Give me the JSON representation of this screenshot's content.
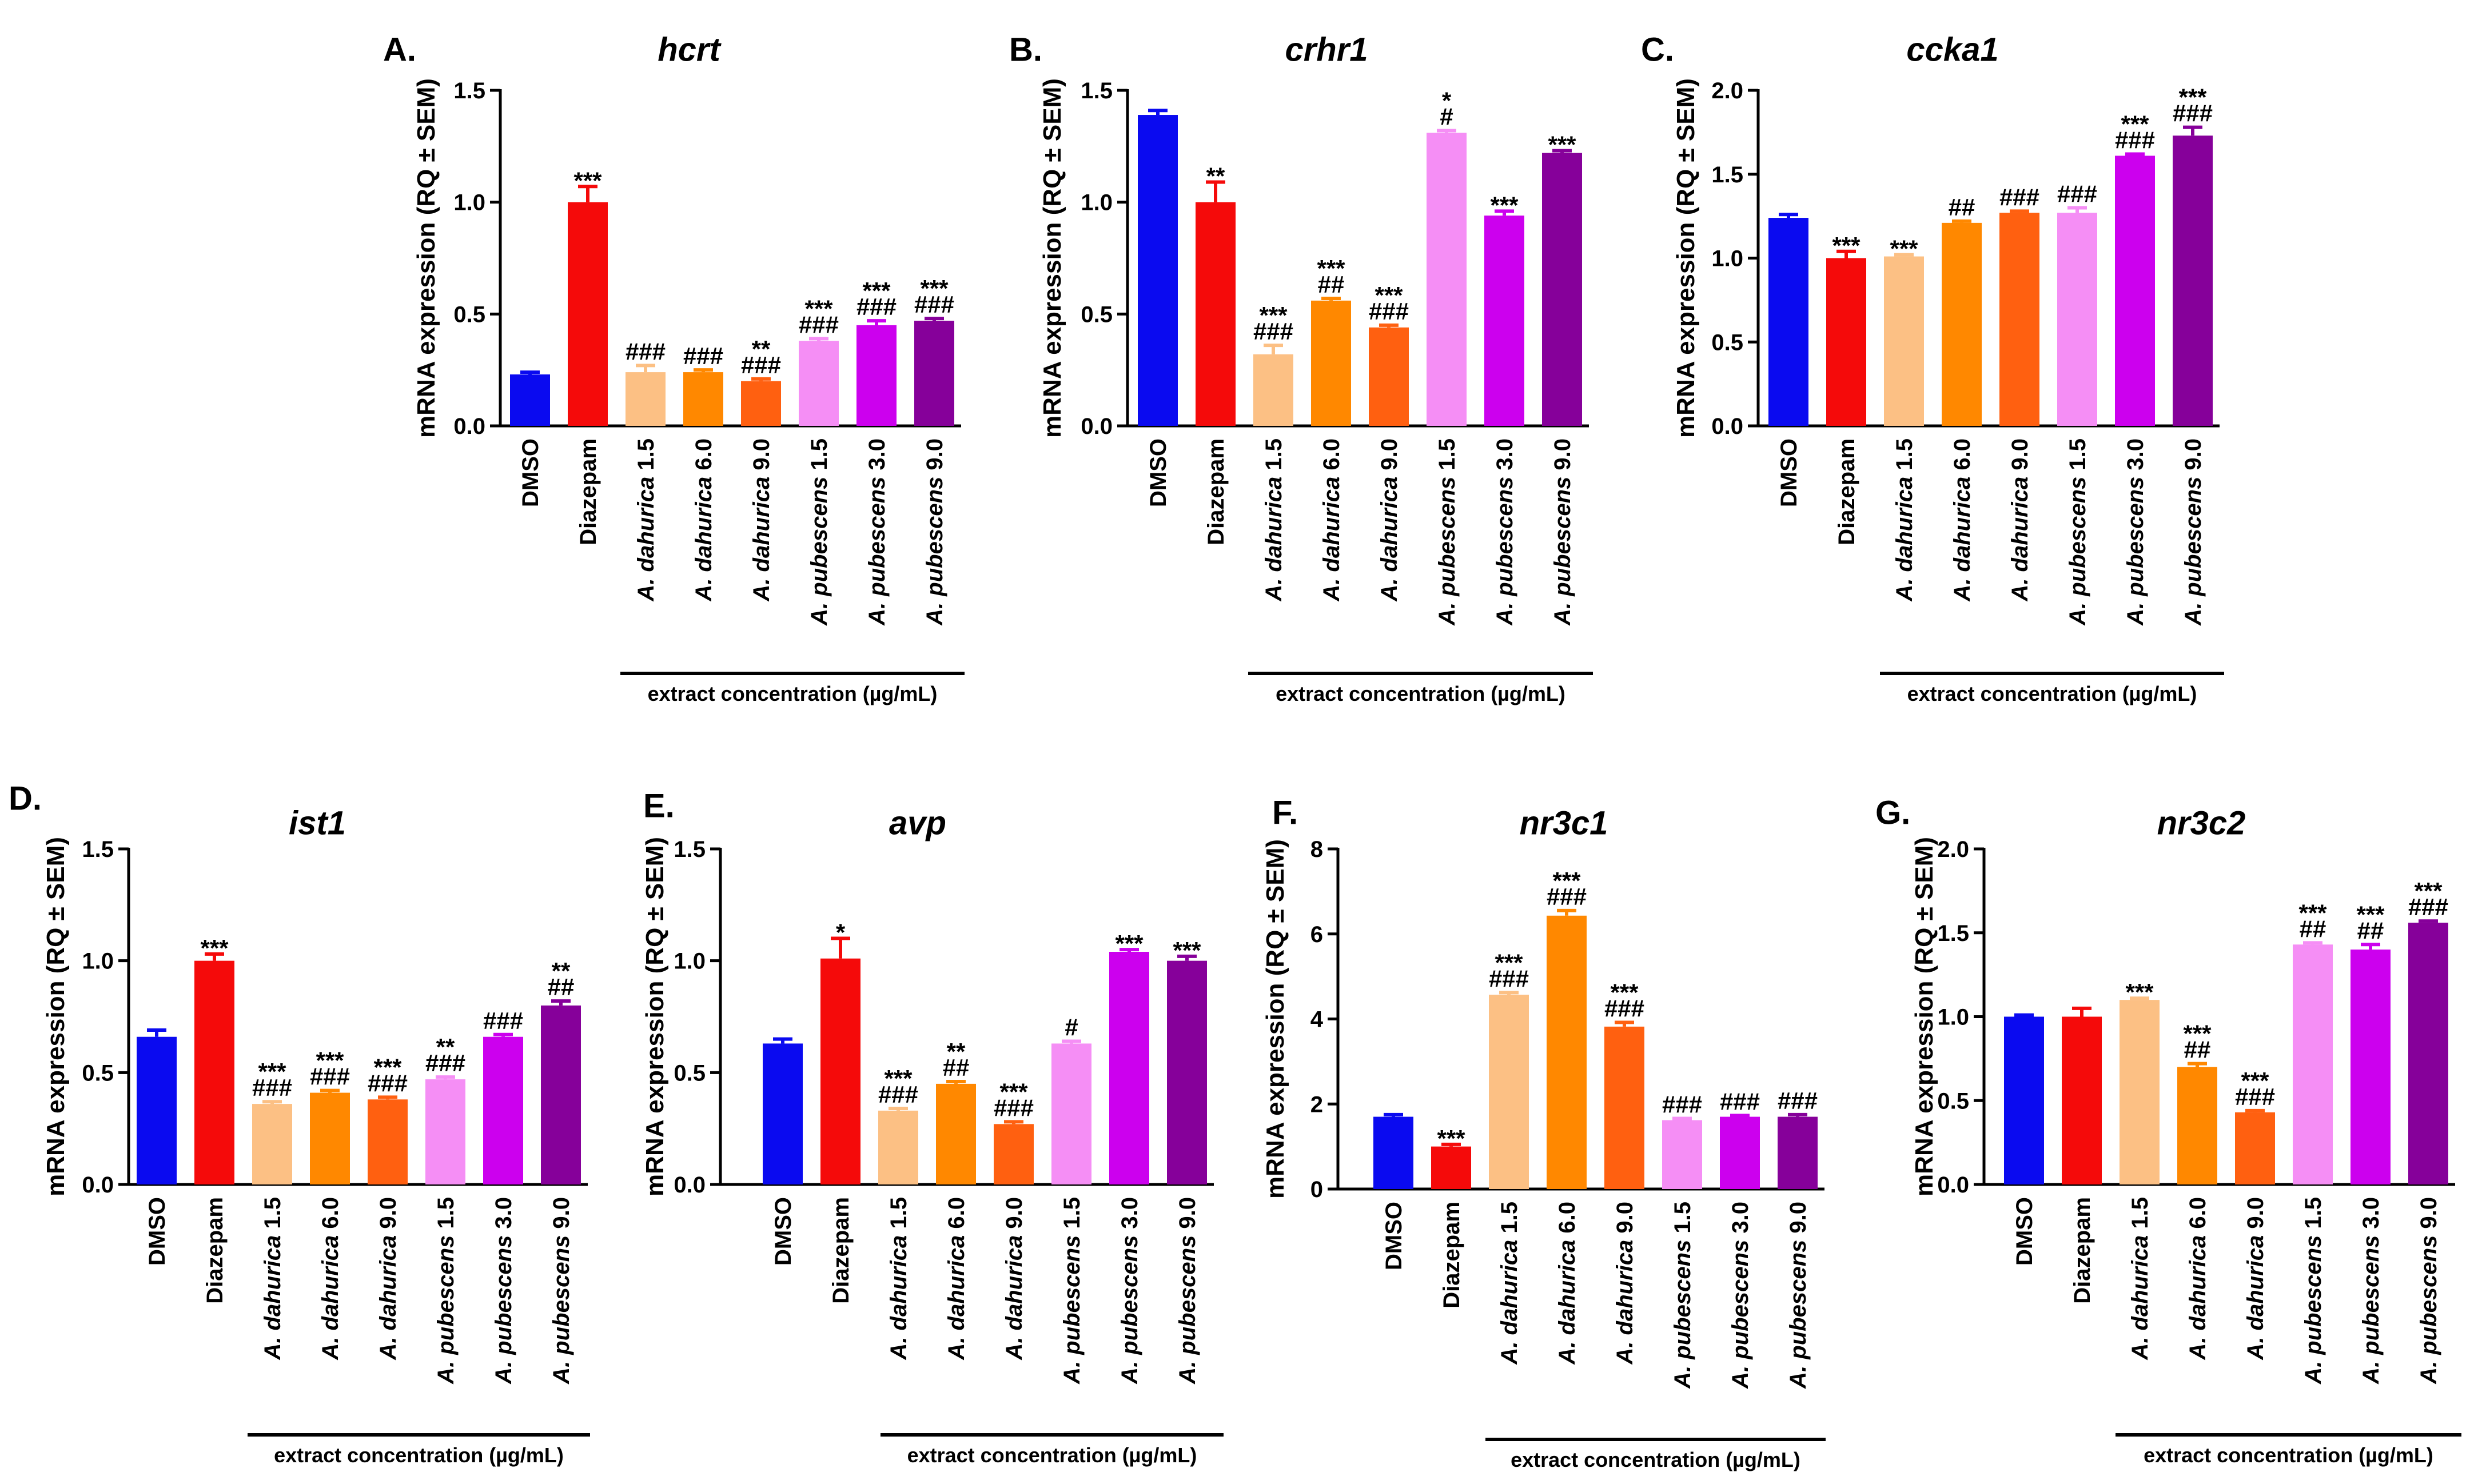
{
  "figure": {
    "extract_label": "extract concentration (µg/mL)",
    "colors": [
      "#0a0af0",
      "#f50a0a",
      "#fcc084",
      "#ff8800",
      "#ff6010",
      "#f58ef5",
      "#cc00ee",
      "#86009a"
    ],
    "categories": [
      {
        "label": "DMSO",
        "species": "",
        "conc": ""
      },
      {
        "label": "Diazepam",
        "species": "",
        "conc": ""
      },
      {
        "label": "A. dahurica 1.5",
        "species": "A. dahurica",
        "conc": "1.5"
      },
      {
        "label": "A. dahurica 6.0",
        "species": "A. dahurica",
        "conc": "6.0"
      },
      {
        "label": "A. dahurica 9.0",
        "species": "A. dahurica",
        "conc": "9.0"
      },
      {
        "label": "A. pubescens 1.5",
        "species": "A. pubescens",
        "conc": "1.5"
      },
      {
        "label": "A. pubescens 3.0",
        "species": "A. pubescens",
        "conc": "3.0"
      },
      {
        "label": "A. pubescens 9.0",
        "species": "A. pubescens",
        "conc": "9.0"
      }
    ]
  },
  "chart_data": [
    {
      "type": "bar",
      "panel": "A.",
      "title": "hcrt",
      "ylabel": "mRNA expression (RQ ± SEM)",
      "categories": [
        "DMSO",
        "Diazepam",
        "A. dahurica 1.5",
        "A. dahurica 6.0",
        "A. dahurica 9.0",
        "A. pubescens 1.5",
        "A. pubescens 3.0",
        "A. pubescens 9.0"
      ],
      "values": [
        0.23,
        1.0,
        0.24,
        0.24,
        0.2,
        0.38,
        0.45,
        0.47
      ],
      "errors": [
        0.01,
        0.07,
        0.03,
        0.01,
        0.01,
        0.01,
        0.02,
        0.01
      ],
      "ylim": [
        0,
        1.5
      ],
      "yticks": [
        "0.0",
        "0.5",
        "1.0",
        "1.5"
      ],
      "sig_top": [
        "",
        "***",
        "",
        "",
        "**",
        "***",
        "***",
        "***"
      ],
      "sig_bottom": [
        "",
        "",
        "###",
        "###",
        "###",
        "###",
        "###",
        "###"
      ]
    },
    {
      "type": "bar",
      "panel": "B.",
      "title": "crhr1",
      "ylabel": "mRNA expression (RQ ± SEM)",
      "categories": [
        "DMSO",
        "Diazepam",
        "A. dahurica 1.5",
        "A. dahurica 6.0",
        "A. dahurica 9.0",
        "A. pubescens 1.5",
        "A. pubescens 3.0",
        "A. pubescens 9.0"
      ],
      "values": [
        1.39,
        1.0,
        0.32,
        0.56,
        0.44,
        1.31,
        0.94,
        1.22
      ],
      "errors": [
        0.02,
        0.09,
        0.04,
        0.01,
        0.01,
        0.01,
        0.02,
        0.01
      ],
      "ylim": [
        0,
        1.5
      ],
      "yticks": [
        "0.0",
        "0.5",
        "1.0",
        "1.5"
      ],
      "sig_top": [
        "",
        "**",
        "***",
        "***",
        "***",
        "*",
        "***",
        "***"
      ],
      "sig_bottom": [
        "",
        "",
        "###",
        "##",
        "###",
        "#",
        "",
        ""
      ]
    },
    {
      "type": "bar",
      "panel": "C.",
      "title": "ccka1",
      "ylabel": "mRNA expression (RQ ± SEM)",
      "categories": [
        "DMSO",
        "Diazepam",
        "A. dahurica 1.5",
        "A. dahurica 6.0",
        "A. dahurica 9.0",
        "A. pubescens 1.5",
        "A. pubescens 3.0",
        "A. pubescens 9.0"
      ],
      "values": [
        1.24,
        1.0,
        1.01,
        1.21,
        1.27,
        1.27,
        1.61,
        1.73
      ],
      "errors": [
        0.02,
        0.04,
        0.01,
        0.01,
        0.01,
        0.03,
        0.01,
        0.05
      ],
      "ylim": [
        0,
        2.0
      ],
      "yticks": [
        "0.0",
        "0.5",
        "1.0",
        "1.5",
        "2.0"
      ],
      "sig_top": [
        "",
        "***",
        "***",
        "",
        "",
        "",
        "***",
        "***"
      ],
      "sig_bottom": [
        "",
        "",
        "",
        "##",
        "###",
        "###",
        "###",
        "###"
      ]
    },
    {
      "type": "bar",
      "panel": "D.",
      "title": "ist1",
      "ylabel": "mRNA expression (RQ ± SEM)",
      "categories": [
        "DMSO",
        "Diazepam",
        "A. dahurica 1.5",
        "A. dahurica 6.0",
        "A. dahurica 9.0",
        "A. pubescens 1.5",
        "A. pubescens 3.0",
        "A. pubescens 9.0"
      ],
      "values": [
        0.66,
        1.0,
        0.36,
        0.41,
        0.38,
        0.47,
        0.66,
        0.8
      ],
      "errors": [
        0.03,
        0.03,
        0.01,
        0.01,
        0.01,
        0.01,
        0.01,
        0.02
      ],
      "ylim": [
        0,
        1.5
      ],
      "yticks": [
        "0.0",
        "0.5",
        "1.0",
        "1.5"
      ],
      "sig_top": [
        "",
        "***",
        "***",
        "***",
        "***",
        "**",
        "",
        "**"
      ],
      "sig_bottom": [
        "",
        "",
        "###",
        "###",
        "###",
        "###",
        "###",
        "##"
      ]
    },
    {
      "type": "bar",
      "panel": "E.",
      "title": "avp",
      "ylabel": "mRNA expression (RQ ± SEM)",
      "categories": [
        "DMSO",
        "Diazepam",
        "A. dahurica 1.5",
        "A. dahurica 6.0",
        "A. dahurica 9.0",
        "A. pubescens 1.5",
        "A. pubescens 3.0",
        "A. pubescens 9.0"
      ],
      "values": [
        0.63,
        1.01,
        0.33,
        0.45,
        0.27,
        0.63,
        1.04,
        1.0
      ],
      "errors": [
        0.02,
        0.09,
        0.01,
        0.01,
        0.01,
        0.01,
        0.01,
        0.02
      ],
      "ylim": [
        0,
        1.5
      ],
      "yticks": [
        "0.0",
        "0.5",
        "1.0",
        "1.5"
      ],
      "sig_top": [
        "",
        "*",
        "***",
        "**",
        "***",
        "",
        "***",
        "***"
      ],
      "sig_bottom": [
        "",
        "",
        "###",
        "##",
        "###",
        "#",
        "",
        ""
      ]
    },
    {
      "type": "bar",
      "panel": "F.",
      "title": "nr3c1",
      "ylabel": "mRNA expression (RQ ± SEM)",
      "categories": [
        "DMSO",
        "Diazepam",
        "A. dahurica 1.5",
        "A. dahurica 6.0",
        "A. dahurica 9.0",
        "A. pubescens 1.5",
        "A. pubescens 3.0",
        "A. pubescens 9.0"
      ],
      "values": [
        1.7,
        1.0,
        4.57,
        6.43,
        3.82,
        1.62,
        1.7,
        1.7
      ],
      "errors": [
        0.05,
        0.05,
        0.05,
        0.12,
        0.1,
        0.04,
        0.03,
        0.05
      ],
      "ylim": [
        0,
        8
      ],
      "yticks": [
        "0",
        "2",
        "4",
        "6",
        "8"
      ],
      "sig_top": [
        "",
        "***",
        "***",
        "***",
        "***",
        "",
        "",
        ""
      ],
      "sig_bottom": [
        "",
        "",
        "###",
        "###",
        "###",
        "###",
        "###",
        "###"
      ]
    },
    {
      "type": "bar",
      "panel": "G.",
      "title": "nr3c2",
      "ylabel": "mRNA expression (RQ ± SEM)",
      "categories": [
        "DMSO",
        "Diazepam",
        "A. dahurica 1.5",
        "A. dahurica 6.0",
        "A. dahurica 9.0",
        "A. pubescens 1.5",
        "A. pubescens 3.0",
        "A. pubescens 9.0"
      ],
      "values": [
        1.0,
        1.0,
        1.1,
        0.7,
        0.43,
        1.43,
        1.4,
        1.56
      ],
      "errors": [
        0.01,
        0.05,
        0.01,
        0.02,
        0.01,
        0.01,
        0.03,
        0.01
      ],
      "ylim": [
        0,
        2.0
      ],
      "yticks": [
        "0.0",
        "0.5",
        "1.0",
        "1.5",
        "2.0"
      ],
      "sig_top": [
        "",
        "",
        "***",
        "***",
        "***",
        "***",
        "***",
        "***"
      ],
      "sig_bottom": [
        "",
        "",
        "",
        "##",
        "###",
        "##",
        "##",
        "###"
      ]
    }
  ]
}
